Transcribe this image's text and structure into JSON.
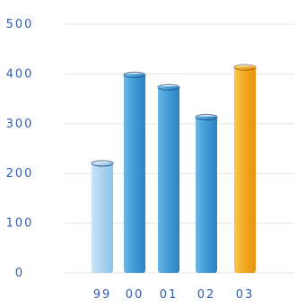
{
  "chart_data": {
    "type": "bar",
    "title": "",
    "xlabel": "",
    "ylabel": "",
    "categories": [
      "99",
      "00",
      "01",
      "02",
      "03"
    ],
    "values": [
      222,
      400,
      375,
      315,
      415
    ],
    "ylim": [
      0,
      500
    ],
    "yticks": [
      "0",
      "100",
      "200",
      "300",
      "400",
      "500"
    ],
    "grid": true,
    "highlight_index": 4,
    "colors": {
      "light_bar": "#a9d3f0",
      "bar": "#3f9ad6",
      "highlight_bar": "#f2a81d",
      "grid": "#e3e3e3",
      "tick_text": "#2f5fb0"
    }
  }
}
